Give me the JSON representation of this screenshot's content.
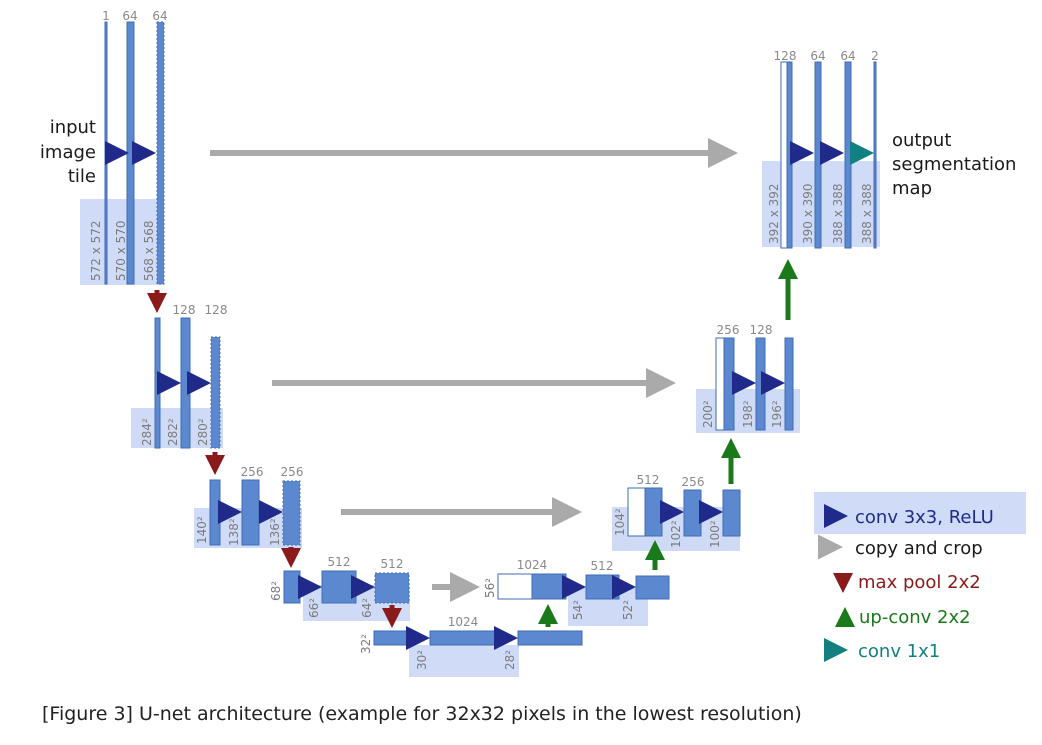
{
  "diagram": {
    "input_label": [
      "input",
      "image",
      "tile"
    ],
    "output_label": [
      "output",
      "segmentation",
      "map"
    ],
    "level1": {
      "channels": [
        "1",
        "64",
        "64"
      ],
      "sizes": [
        "572 x 572",
        "570 x 570",
        "568 x 568"
      ],
      "out_channels": [
        "128",
        "64",
        "64",
        "2"
      ],
      "out_sizes": [
        "392 x 392",
        "390 x 390",
        "388 x 388",
        "388 x 388"
      ]
    },
    "level2": {
      "channels": [
        "128",
        "128"
      ],
      "sizes": [
        "284²",
        "282²",
        "280²"
      ],
      "up_channels": [
        "256",
        "128"
      ],
      "up_sizes": [
        "200²",
        "198²",
        "196²"
      ]
    },
    "level3": {
      "channels": [
        "256",
        "256"
      ],
      "sizes": [
        "140²",
        "138²",
        "136²"
      ],
      "up_channels": [
        "512",
        "256"
      ],
      "up_sizes": [
        "104²",
        "102²",
        "100²"
      ]
    },
    "level4": {
      "channels": [
        "512",
        "512"
      ],
      "sizes": [
        "68²",
        "66²",
        "64²"
      ],
      "up_channels": [
        "1024",
        "512"
      ],
      "up_sizes": [
        "56²",
        "54²",
        "52²"
      ]
    },
    "level5": {
      "channels": [
        "1024"
      ],
      "sizes": [
        "32²",
        "30²",
        "28²"
      ]
    }
  },
  "legend": [
    {
      "label": "conv 3x3, ReLU",
      "color": "#1f2a8a",
      "kind": "conv"
    },
    {
      "label": "copy and crop",
      "color": "#aaaaaa",
      "kind": "copy"
    },
    {
      "label": "max pool 2x2",
      "color": "#8b1a1a",
      "kind": "pool"
    },
    {
      "label": "up-conv 2x2",
      "color": "#1a7a1a",
      "kind": "up"
    },
    {
      "label": "conv 1x1",
      "color": "#128080",
      "kind": "conv1"
    }
  ],
  "caption": "[Figure 3] U-net architecture (example for 32x32 pixels in the lowest resolution)"
}
